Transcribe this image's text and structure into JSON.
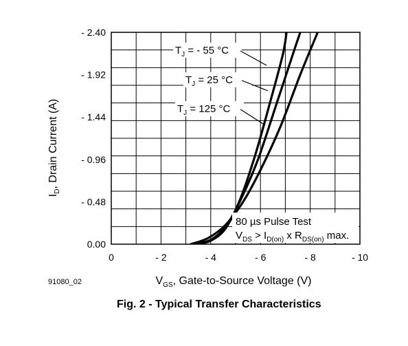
{
  "chart_data": {
    "type": "line",
    "xlabel": {
      "main": "V",
      "sub": "GS",
      "rest": ", Gate-to-Source Voltage (V)"
    },
    "ylabel": {
      "main": "I",
      "sub": "D",
      "rest": ", Drain Current (A)"
    },
    "xlim": [
      0,
      -10
    ],
    "ylim": [
      0,
      2.4
    ],
    "x_ticks": [
      0,
      -2,
      -4,
      -6,
      -8,
      -10
    ],
    "x_tick_labels": [
      "0",
      "- 2",
      "- 4",
      "- 6",
      "- 8",
      "- 10"
    ],
    "y_ticks": [
      0,
      0.48,
      0.96,
      1.44,
      1.92,
      2.4
    ],
    "y_tick_labels": [
      "0.00",
      "- 0.48",
      "- 0.96",
      "- 1.44",
      "- 1.92",
      "- 2.40"
    ],
    "grid": true,
    "series": [
      {
        "name": "T_J = -55 °C",
        "label_main": "T",
        "label_sub": "J",
        "label_rest": " = - 55 °C",
        "points": [
          [
            -3.4,
            0.0
          ],
          [
            -4.0,
            0.04
          ],
          [
            -4.6,
            0.18
          ],
          [
            -5.2,
            0.52
          ],
          [
            -5.8,
            1.02
          ],
          [
            -6.4,
            1.62
          ],
          [
            -6.9,
            2.15
          ],
          [
            -7.05,
            2.4
          ]
        ]
      },
      {
        "name": "T_J = 25 °C",
        "label_main": "T",
        "label_sub": "J",
        "label_rest": " = 25 °C",
        "points": [
          [
            -3.3,
            0.0
          ],
          [
            -4.0,
            0.05
          ],
          [
            -4.6,
            0.2
          ],
          [
            -5.2,
            0.5
          ],
          [
            -5.9,
            0.96
          ],
          [
            -6.6,
            1.55
          ],
          [
            -7.3,
            2.15
          ],
          [
            -7.6,
            2.4
          ]
        ]
      },
      {
        "name": "T_J = 125 °C",
        "label_main": "T",
        "label_sub": "J",
        "label_rest": " = 125 °C",
        "points": [
          [
            -3.2,
            0.0
          ],
          [
            -3.9,
            0.07
          ],
          [
            -4.6,
            0.22
          ],
          [
            -5.3,
            0.48
          ],
          [
            -6.0,
            0.84
          ],
          [
            -6.8,
            1.33
          ],
          [
            -7.6,
            1.92
          ],
          [
            -8.3,
            2.4
          ]
        ]
      }
    ],
    "annotation": {
      "line1": "80 µs Pulse Test",
      "l2_a": "V",
      "l2_a_sub": "DS",
      "l2_b": " > I",
      "l2_b_sub": "D(on)",
      "l2_c": " x R",
      "l2_c_sub": "DS(on)",
      "l2_d": " max."
    }
  },
  "figure_id": "91080_02",
  "caption": "Fig. 2 - Typical Transfer Characteristics"
}
